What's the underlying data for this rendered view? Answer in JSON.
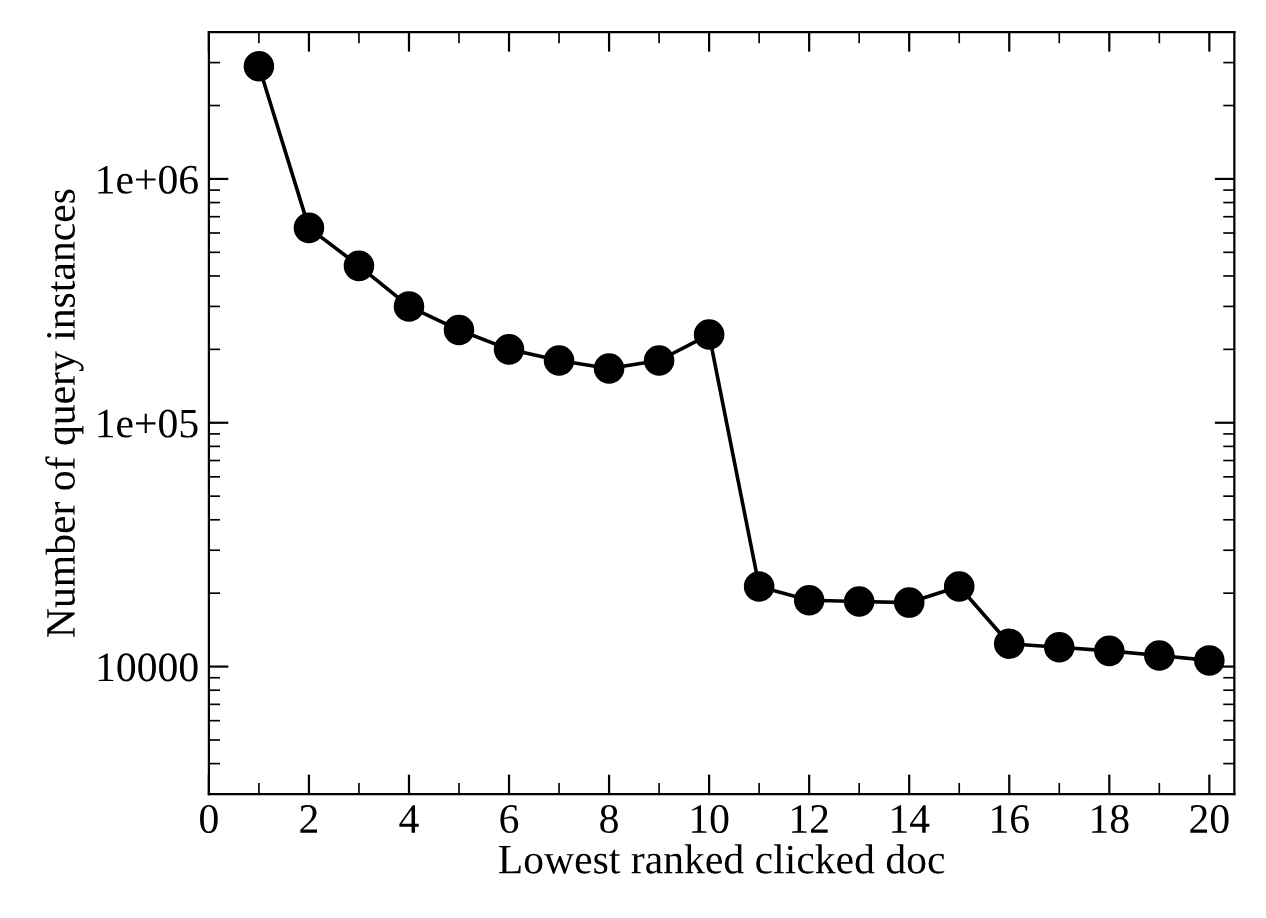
{
  "chart_data": {
    "type": "line",
    "xlabel": "Lowest ranked clicked doc",
    "ylabel": "Number of query instances",
    "x": [
      1,
      2,
      3,
      4,
      5,
      6,
      7,
      8,
      9,
      10,
      11,
      12,
      13,
      14,
      15,
      16,
      17,
      18,
      19,
      20
    ],
    "series": [
      {
        "color": "#000000",
        "values": [
          2900000,
          630000,
          440000,
          300000,
          240000,
          200000,
          180000,
          167000,
          180000,
          230000,
          21300,
          18700,
          18500,
          18300,
          21300,
          12400,
          12000,
          11600,
          11100,
          10600
        ]
      }
    ],
    "log": "y",
    "marker": "circle",
    "line_style": "solid",
    "grid": false,
    "legend": false,
    "xlim": [
      0,
      20.5
    ],
    "xticks": [
      0,
      2,
      4,
      6,
      8,
      10,
      12,
      14,
      16,
      18,
      20
    ],
    "ylim": [
      3000,
      4000000
    ],
    "yticks": [
      {
        "value": 10000,
        "label": "10000"
      },
      {
        "value": 100000,
        "label": "1e+05"
      },
      {
        "value": 1000000,
        "label": "1e+06"
      }
    ]
  }
}
